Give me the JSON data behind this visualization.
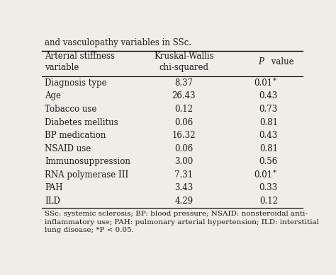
{
  "title_line": "and vasculopathy variables in SSc.",
  "col_headers": [
    "Arterial stiffness\nvariable",
    "Kruskal-Wallis\nchi-squared",
    "P value"
  ],
  "rows": [
    [
      "Diagnosis type",
      "8.37",
      "0.01*"
    ],
    [
      "Age",
      "26.43",
      "0.43"
    ],
    [
      "Tobacco use",
      "0.12",
      "0.73"
    ],
    [
      "Diabetes mellitus",
      "0.06",
      "0.81"
    ],
    [
      "BP medication",
      "16.32",
      "0.43"
    ],
    [
      "NSAID use",
      "0.06",
      "0.81"
    ],
    [
      "Immunosuppression",
      "3.00",
      "0.56"
    ],
    [
      "RNA polymerase III",
      "7.31",
      "0.01*"
    ],
    [
      "PAH",
      "3.43",
      "0.33"
    ],
    [
      "ILD",
      "4.29",
      "0.12"
    ]
  ],
  "footnote": "SSc: systemic sclerosis; BP: blood pressure; NSAID: nonsteroidal anti-\ninflammatory use; PAH: pulmonary arterial hypertension; ILD: interstitial\nlung disease; *P < 0.05.",
  "bg_color": "#f0ede8",
  "text_color": "#1a1a1a",
  "font_size": 8.5,
  "header_font_size": 8.5,
  "footnote_font_size": 7.5
}
